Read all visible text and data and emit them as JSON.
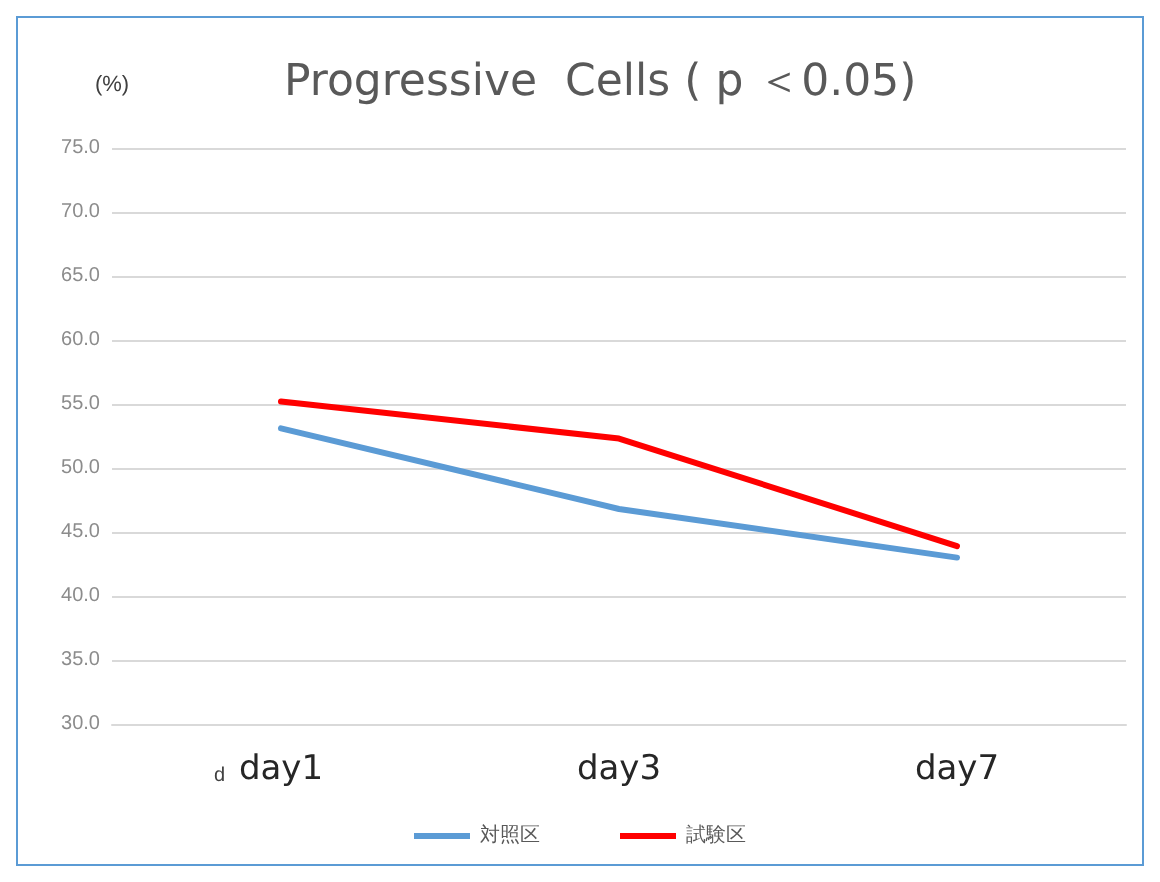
{
  "chart_data": {
    "type": "line",
    "title": "Progressive  Cells ( p ＜0.05)",
    "ylabel": "(%)",
    "annotations": [
      "d"
    ],
    "categories": [
      "day1",
      "day3",
      "day7"
    ],
    "series": [
      {
        "name": "対照区",
        "color": "#5b9bd5",
        "values": [
          53.1,
          46.8,
          43.0
        ]
      },
      {
        "name": "試験区",
        "color": "#ff0000",
        "values": [
          55.2,
          52.3,
          43.9
        ]
      }
    ],
    "ylim": [
      30,
      75
    ],
    "yticks": [
      {
        "value": 30,
        "label": "30.0"
      },
      {
        "value": 35,
        "label": "35.0"
      },
      {
        "value": 40,
        "label": "40.0"
      },
      {
        "value": 45,
        "label": "45.0"
      },
      {
        "value": 50,
        "label": "50.0"
      },
      {
        "value": 55,
        "label": "55.0"
      },
      {
        "value": 60,
        "label": "60.0"
      },
      {
        "value": 65,
        "label": "65.0"
      },
      {
        "value": 70,
        "label": "70.0"
      },
      {
        "value": 75,
        "label": "75.0"
      }
    ],
    "grid": "y",
    "legend": "bottom",
    "marker": "none",
    "line_style": "solid"
  }
}
